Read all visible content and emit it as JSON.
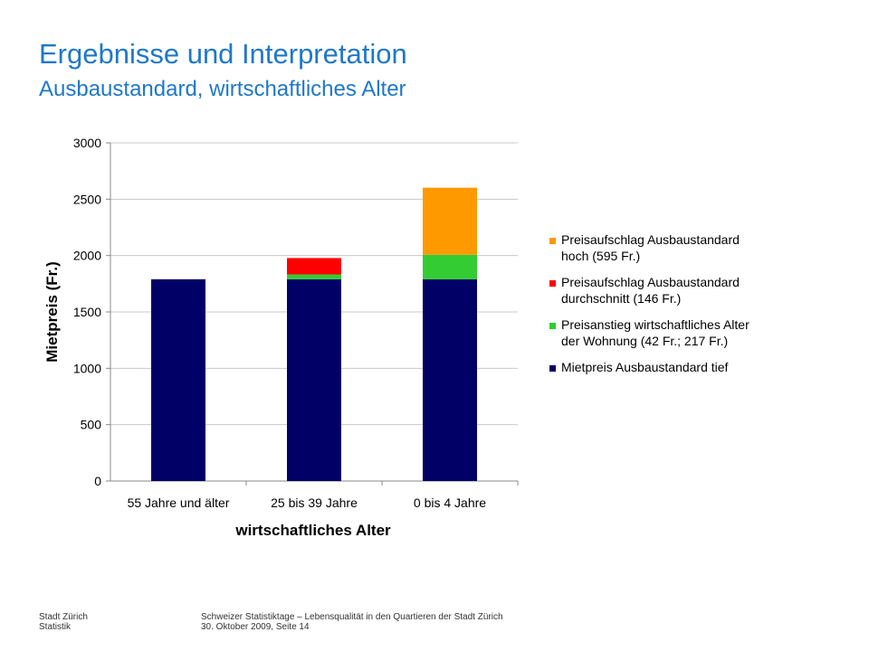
{
  "page": {
    "title": "Ergebnisse und Interpretation",
    "subtitle": "Ausbaustandard, wirtschaftliches Alter"
  },
  "footer": {
    "left_line1": "Stadt Zürich",
    "left_line2": "Statistik",
    "right_line1": "Schweizer Statistiktage – Lebensqualität in den Quartieren der Stadt Zürich",
    "right_line2": "30. Oktober 2009, Seite 14"
  },
  "chart_data": {
    "type": "bar",
    "stacked": true,
    "categories": [
      "55 Jahre und älter",
      "25 bis 39 Jahre",
      "0 bis 4 Jahre"
    ],
    "xlabel": "wirtschaftliches Alter",
    "ylabel": "Mietpreis (Fr.)",
    "ylim": [
      0,
      3000
    ],
    "yticks": [
      0,
      500,
      1000,
      1500,
      2000,
      2500,
      3000
    ],
    "grid": true,
    "legend_position": "right",
    "series": [
      {
        "name": "Mietpreis Ausbaustandard tief",
        "color": "#000066",
        "values": [
          1790,
          1790,
          1790
        ]
      },
      {
        "name": "Preisanstieg wirtschaftliches Alter der Wohnung (42 Fr.; 217 Fr.)",
        "color": "#33cc33",
        "values": [
          0,
          42,
          217
        ]
      },
      {
        "name": "Preisaufschlag Ausbaustandard durchschnitt (146 Fr.)",
        "color": "#ff0000",
        "values": [
          0,
          146,
          0
        ]
      },
      {
        "name": "Preisaufschlag Ausbaustandard hoch (595 Fr.)",
        "color": "#ff9900",
        "values": [
          0,
          0,
          595
        ]
      }
    ],
    "legend": [
      {
        "line1": "Preisaufschlag Ausbaustandard",
        "line2": "hoch (595 Fr.)",
        "color": "#ff9900"
      },
      {
        "line1": "Preisaufschlag Ausbaustandard",
        "line2": "durchschnitt (146 Fr.)",
        "color": "#ff0000"
      },
      {
        "line1": "Preisanstieg wirtschaftliches Alter",
        "line2": "der Wohnung (42 Fr.; 217 Fr.)",
        "color": "#33cc33"
      },
      {
        "line1": "Mietpreis Ausbaustandard tief",
        "line2": "",
        "color": "#000066"
      }
    ]
  }
}
